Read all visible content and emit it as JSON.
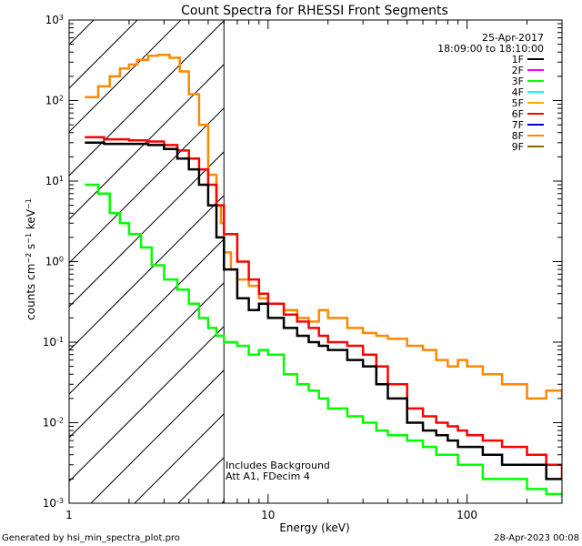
{
  "chart_data": {
    "type": "line",
    "title": "Count Spectra for RHESSI Front Segments",
    "xlabel": "Energy (keV)",
    "ylabel": "counts cm-2 s-1 keV-1",
    "x_scale": "log",
    "y_scale": "log",
    "xlim": [
      1,
      300
    ],
    "ylim": [
      0.001,
      1000
    ],
    "x_ticks": [
      {
        "value": 1,
        "label": "1"
      },
      {
        "value": 10,
        "label": "10"
      },
      {
        "value": 100,
        "label": "100"
      }
    ],
    "y_ticks": [
      {
        "value": 0.001,
        "base": "10",
        "exp": "-3"
      },
      {
        "value": 0.01,
        "base": "10",
        "exp": "-2"
      },
      {
        "value": 0.1,
        "base": "10",
        "exp": "-1"
      },
      {
        "value": 1,
        "base": "10",
        "exp": "0"
      },
      {
        "value": 10,
        "base": "10",
        "exp": "1"
      },
      {
        "value": 100,
        "base": "10",
        "exp": "2"
      },
      {
        "value": 1000,
        "base": "10",
        "exp": "3"
      }
    ],
    "hatched_region_xmax": 6,
    "date": "25-Apr-2017",
    "time_range": "18:09:00 to 18:10:00",
    "legend": [
      {
        "name": "1F",
        "color": "#000000"
      },
      {
        "name": "2F",
        "color": "#ff00ff"
      },
      {
        "name": "3F",
        "color": "#00ff00"
      },
      {
        "name": "4F",
        "color": "#00ffff"
      },
      {
        "name": "5F",
        "color": "#ffaa00"
      },
      {
        "name": "6F",
        "color": "#ff0000"
      },
      {
        "name": "7F",
        "color": "#0000cc"
      },
      {
        "name": "8F",
        "color": "#ff8800"
      },
      {
        "name": "9F",
        "color": "#886600"
      }
    ],
    "annotations": [
      "Includes Background",
      "Att A1, FDecim 4"
    ],
    "series": [
      {
        "name": "8F",
        "color": "#ff8800",
        "x": [
          1.2,
          1.4,
          1.6,
          1.8,
          2.0,
          2.2,
          2.5,
          2.8,
          3.2,
          3.6,
          4.0,
          4.5,
          5.0,
          5.5,
          5.8,
          6.0,
          6.5,
          7.0,
          8.0,
          9.0,
          10.0,
          12,
          14,
          16,
          18,
          20,
          25,
          30,
          35,
          40,
          50,
          60,
          70,
          80,
          90,
          100,
          120,
          150,
          200,
          250,
          300
        ],
        "y": [
          110,
          150,
          200,
          250,
          280,
          320,
          360,
          370,
          340,
          230,
          120,
          50,
          12,
          5,
          3,
          1.3,
          0.8,
          0.6,
          0.5,
          0.35,
          0.3,
          0.25,
          0.2,
          0.18,
          0.25,
          0.2,
          0.15,
          0.13,
          0.12,
          0.11,
          0.09,
          0.08,
          0.06,
          0.05,
          0.06,
          0.05,
          0.04,
          0.03,
          0.02,
          0.025,
          0.02
        ]
      },
      {
        "name": "6F",
        "color": "#ff0000",
        "x": [
          1.2,
          1.5,
          2.0,
          2.5,
          3.0,
          3.5,
          4.0,
          4.5,
          5.0,
          5.5,
          6.0,
          7.0,
          8.0,
          9.0,
          10.0,
          12,
          14,
          16,
          18,
          20,
          25,
          30,
          35,
          40,
          50,
          60,
          70,
          80,
          90,
          100,
          120,
          150,
          200,
          250,
          300
        ],
        "y": [
          35,
          33,
          32,
          31,
          28,
          24,
          19,
          14,
          9,
          5,
          2.2,
          1.0,
          0.6,
          0.4,
          0.3,
          0.22,
          0.18,
          0.15,
          0.12,
          0.1,
          0.09,
          0.07,
          0.05,
          0.03,
          0.015,
          0.012,
          0.01,
          0.009,
          0.008,
          0.007,
          0.006,
          0.005,
          0.004,
          0.003,
          0.002
        ]
      },
      {
        "name": "1F",
        "color": "#000000",
        "x": [
          1.2,
          1.5,
          2.0,
          2.5,
          3.0,
          3.5,
          4.0,
          4.5,
          5.0,
          5.5,
          6.0,
          7.0,
          8.0,
          9.0,
          10.0,
          12,
          14,
          16,
          18,
          20,
          25,
          30,
          35,
          40,
          50,
          60,
          70,
          80,
          90,
          100,
          120,
          150,
          200,
          250,
          300
        ],
        "y": [
          30,
          29,
          29,
          28,
          25,
          19,
          14,
          9,
          5,
          2,
          0.8,
          0.35,
          0.25,
          0.3,
          0.2,
          0.15,
          0.12,
          0.1,
          0.09,
          0.08,
          0.06,
          0.05,
          0.03,
          0.02,
          0.01,
          0.008,
          0.007,
          0.006,
          0.005,
          0.005,
          0.004,
          0.003,
          0.003,
          0.002,
          0.002
        ]
      },
      {
        "name": "3F",
        "color": "#00ff00",
        "x": [
          1.2,
          1.4,
          1.6,
          1.8,
          2.0,
          2.3,
          2.6,
          3.0,
          3.5,
          4.0,
          4.5,
          5.0,
          5.5,
          6.0,
          7.0,
          8.0,
          9.0,
          10.0,
          12,
          14,
          16,
          18,
          20,
          25,
          30,
          35,
          40,
          50,
          60,
          70,
          80,
          90,
          100,
          120,
          150,
          200,
          250,
          300
        ],
        "y": [
          9,
          7,
          4,
          3,
          2.2,
          1.5,
          0.9,
          0.6,
          0.45,
          0.3,
          0.2,
          0.15,
          0.12,
          0.1,
          0.09,
          0.07,
          0.08,
          0.07,
          0.04,
          0.03,
          0.025,
          0.02,
          0.015,
          0.012,
          0.01,
          0.008,
          0.007,
          0.006,
          0.005,
          0.004,
          0.004,
          0.003,
          0.003,
          0.002,
          0.002,
          0.0015,
          0.0013,
          0.0012
        ]
      }
    ]
  },
  "footer": {
    "generated_by": "Generated by hsi_min_spectra_plot.pro",
    "timestamp": "28-Apr-2023 00:08"
  }
}
